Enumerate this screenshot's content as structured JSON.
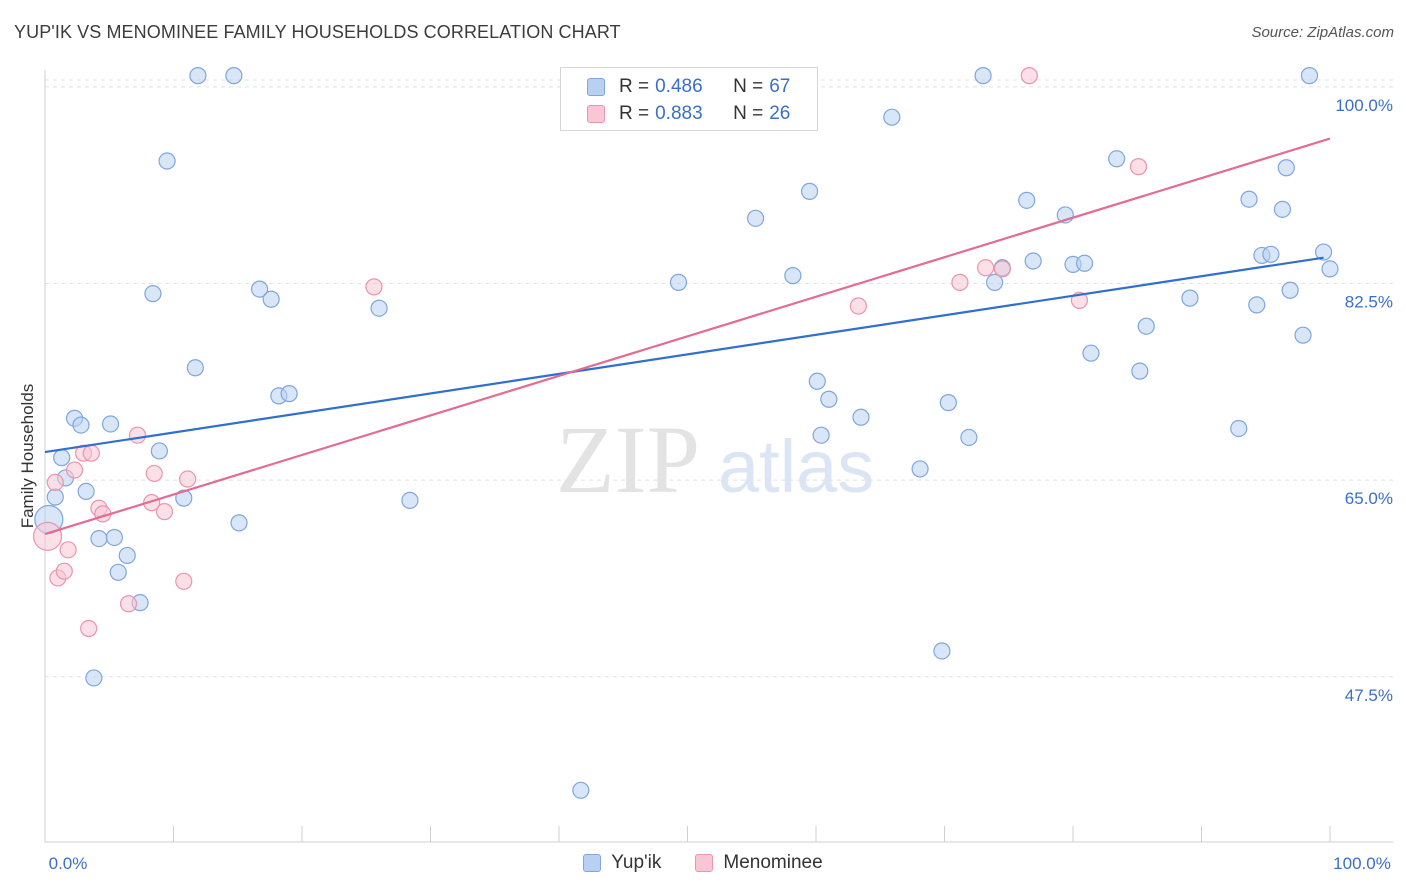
{
  "title": "YUP'IK VS MENOMINEE FAMILY HOUSEHOLDS CORRELATION CHART",
  "source": "Source: ZipAtlas.com",
  "watermark": {
    "zip": "ZIP",
    "atlas": "atlas"
  },
  "legend_top": [
    {
      "r_label": "R =",
      "r_value": "0.486",
      "n_label": "N =",
      "n_value": "67"
    },
    {
      "r_label": "R =",
      "r_value": "0.883",
      "n_label": "N =",
      "n_value": "26"
    }
  ],
  "legend_bottom": [
    {
      "label": "Yup'ik"
    },
    {
      "label": "Menominee"
    }
  ],
  "colors": {
    "blue_fill": "#b8d1f3",
    "blue_stroke": "#7fa6de",
    "blue_line": "#2f6fcf",
    "pink_fill": "#f9c6d4",
    "pink_stroke": "#ec93ad",
    "pink_line": "#e46b93",
    "axis_label": "#3a6fc9",
    "grid": "#e2e2e2"
  },
  "chart_data": {
    "type": "scatter",
    "title": "YUP'IK VS MENOMINEE FAMILY HOUSEHOLDS CORRELATION CHART",
    "xlabel": "",
    "ylabel": "Family Households",
    "xlim": [
      0,
      100
    ],
    "ylim": [
      32.8,
      101.5
    ],
    "x_tick_labels": [
      "0.0%",
      "100.0%"
    ],
    "y_ticks": [
      47.5,
      65.0,
      82.5,
      100.0
    ],
    "y_tick_labels": [
      "47.5%",
      "65.0%",
      "82.5%",
      "100.0%"
    ],
    "series": [
      {
        "name": "Yup'ik",
        "r": 0.486,
        "n": 67,
        "trend": {
          "x": [
            0,
            99.5
          ],
          "y": [
            67.5,
            84.8
          ]
        },
        "points": [
          [
            0.3,
            61.5
          ],
          [
            0.8,
            63.5
          ],
          [
            1.3,
            67.0
          ],
          [
            1.6,
            65.2
          ],
          [
            2.3,
            70.5
          ],
          [
            2.8,
            69.9
          ],
          [
            3.2,
            64.0
          ],
          [
            3.8,
            47.4
          ],
          [
            4.2,
            59.8
          ],
          [
            5.1,
            70.0
          ],
          [
            5.4,
            59.9
          ],
          [
            5.7,
            56.8
          ],
          [
            6.4,
            58.3
          ],
          [
            7.4,
            54.1
          ],
          [
            8.4,
            81.6
          ],
          [
            8.9,
            67.6
          ],
          [
            9.5,
            93.4
          ],
          [
            10.8,
            63.4
          ],
          [
            11.7,
            75.0
          ],
          [
            11.9,
            101.0
          ],
          [
            14.7,
            101.0
          ],
          [
            15.1,
            61.2
          ],
          [
            16.7,
            82.0
          ],
          [
            17.6,
            81.1
          ],
          [
            18.2,
            72.5
          ],
          [
            19.0,
            72.7
          ],
          [
            26.0,
            80.3
          ],
          [
            28.4,
            63.2
          ],
          [
            41.7,
            37.4
          ],
          [
            49.3,
            82.6
          ],
          [
            55.3,
            88.3
          ],
          [
            58.2,
            83.2
          ],
          [
            59.5,
            90.7
          ],
          [
            60.1,
            73.8
          ],
          [
            60.4,
            69.0
          ],
          [
            61.0,
            72.2
          ],
          [
            63.5,
            70.6
          ],
          [
            65.9,
            97.3
          ],
          [
            68.1,
            66.0
          ],
          [
            69.8,
            49.8
          ],
          [
            70.3,
            71.9
          ],
          [
            71.9,
            68.8
          ],
          [
            73.0,
            101.0
          ],
          [
            73.9,
            82.6
          ],
          [
            74.5,
            83.9
          ],
          [
            76.9,
            84.5
          ],
          [
            76.4,
            89.9
          ],
          [
            79.4,
            88.6
          ],
          [
            80.0,
            84.2
          ],
          [
            80.9,
            84.3
          ],
          [
            81.4,
            76.3
          ],
          [
            83.4,
            93.6
          ],
          [
            85.2,
            74.7
          ],
          [
            85.7,
            78.7
          ],
          [
            89.1,
            81.2
          ],
          [
            92.9,
            69.6
          ],
          [
            93.7,
            90.0
          ],
          [
            94.3,
            80.6
          ],
          [
            94.7,
            85.0
          ],
          [
            95.4,
            85.1
          ],
          [
            96.3,
            89.1
          ],
          [
            96.6,
            92.8
          ],
          [
            96.9,
            81.9
          ],
          [
            97.9,
            77.9
          ],
          [
            98.4,
            101.0
          ],
          [
            99.5,
            85.3
          ],
          [
            100.0,
            83.8
          ]
        ]
      },
      {
        "name": "Menominee",
        "r": 0.883,
        "n": 26,
        "trend": {
          "x": [
            0,
            100
          ],
          "y": [
            60.2,
            95.4
          ]
        },
        "points": [
          [
            0.2,
            60.0
          ],
          [
            0.8,
            64.8
          ],
          [
            1.0,
            56.3
          ],
          [
            1.5,
            56.9
          ],
          [
            1.8,
            58.8
          ],
          [
            2.3,
            65.9
          ],
          [
            3.0,
            67.4
          ],
          [
            3.4,
            51.8
          ],
          [
            3.6,
            67.4
          ],
          [
            4.2,
            62.5
          ],
          [
            4.5,
            62.0
          ],
          [
            6.5,
            54.0
          ],
          [
            7.2,
            69.0
          ],
          [
            8.3,
            63.0
          ],
          [
            8.5,
            65.6
          ],
          [
            9.3,
            62.2
          ],
          [
            10.8,
            56.0
          ],
          [
            11.1,
            65.1
          ],
          [
            25.6,
            82.2
          ],
          [
            63.3,
            80.5
          ],
          [
            71.2,
            82.6
          ],
          [
            73.2,
            83.9
          ],
          [
            74.5,
            83.8
          ],
          [
            76.6,
            101.0
          ],
          [
            80.5,
            81.0
          ],
          [
            85.1,
            92.9
          ]
        ]
      }
    ]
  }
}
